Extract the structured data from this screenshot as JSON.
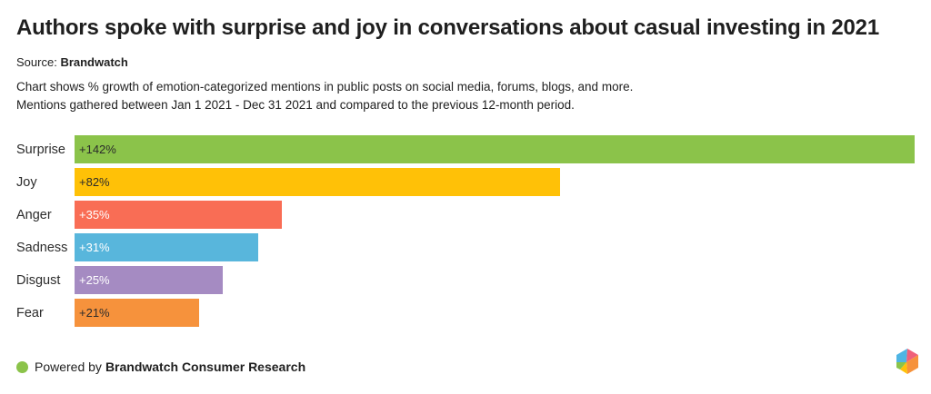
{
  "header": {
    "title": "Authors spoke with surprise and joy in conversations about casual investing in 2021",
    "source_prefix": "Source:",
    "source_name": "Brandwatch",
    "description_line1": "Chart shows % growth of emotion-categorized mentions in public posts on social media, forums, blogs, and more.",
    "description_line2": "Mentions gathered between Jan 1 2021 - Dec 31 2021 and compared to the previous 12-month period."
  },
  "chart_data": {
    "type": "bar",
    "orientation": "horizontal",
    "title": "Authors spoke with surprise and joy in conversations about casual investing in 2021",
    "categories": [
      "Surprise",
      "Joy",
      "Anger",
      "Sadness",
      "Disgust",
      "Fear"
    ],
    "values": [
      142,
      82,
      35,
      31,
      25,
      21
    ],
    "value_labels": [
      "+142%",
      "+82%",
      "+35%",
      "+31%",
      "+25%",
      "+21%"
    ],
    "bar_colors": [
      "#8BC34A",
      "#FFC107",
      "#F96D55",
      "#58B6DC",
      "#A58BC2",
      "#F6923C"
    ],
    "value_label_colors": [
      "#2B2B2B",
      "#2B2B2B",
      "#FFFFFF",
      "#FFFFFF",
      "#FFFFFF",
      "#2B2B2B"
    ],
    "xlabel": "",
    "ylabel": "",
    "xlim": [
      0,
      142
    ],
    "grid": false,
    "legend": "none",
    "unit": "% growth of mentions"
  },
  "footer": {
    "dot_color": "#8BC34A",
    "powered_by_prefix": "Powered by",
    "brand": "Brandwatch Consumer Research",
    "logo_name": "brandwatch-hexagon-logo",
    "logo_colors": [
      "#4FB5E4",
      "#F0607A",
      "#F6923C",
      "#FFC107",
      "#8BC34A"
    ]
  }
}
